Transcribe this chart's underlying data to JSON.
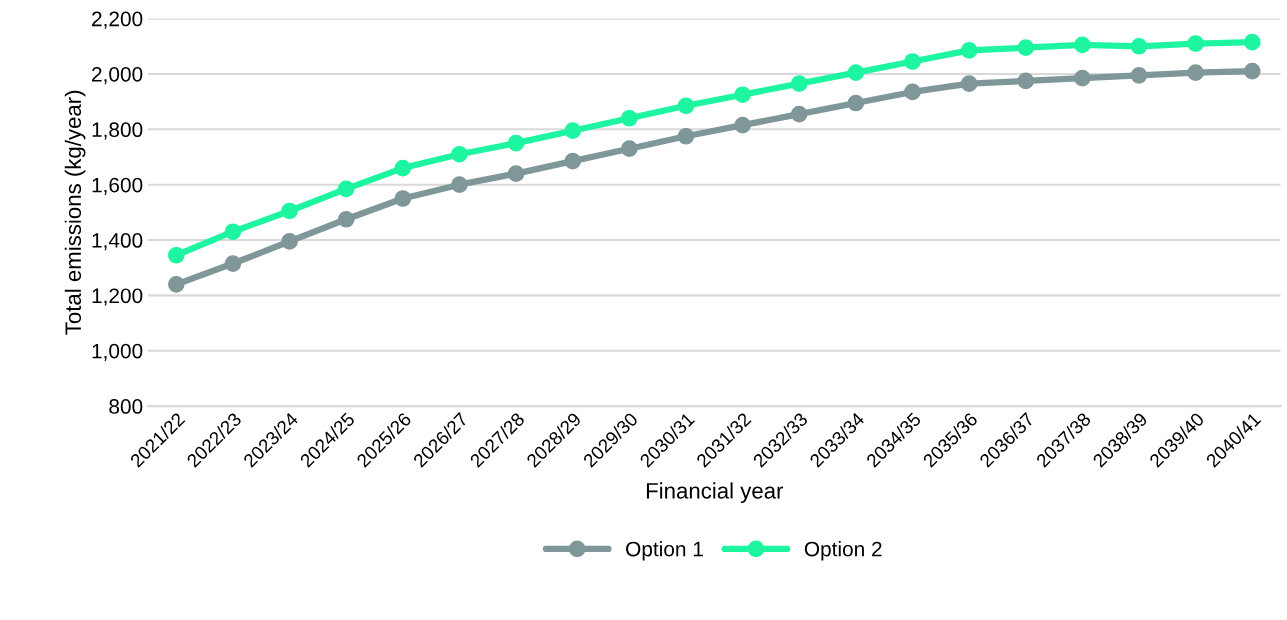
{
  "chart_data": {
    "type": "line",
    "xlabel": "Financial year",
    "ylabel": "Total emissions (kg/year)",
    "categories": [
      "2021/22",
      "2022/23",
      "2023/24",
      "2024/25",
      "2025/26",
      "2026/27",
      "2027/28",
      "2028/29",
      "2029/30",
      "2030/31",
      "2031/32",
      "2032/33",
      "2033/34",
      "2034/35",
      "2035/36",
      "2036/37",
      "2037/38",
      "2038/39",
      "2039/40",
      "2040/41"
    ],
    "series": [
      {
        "name": "Option 1",
        "color": "#7f9799",
        "values": [
          1240,
          1315,
          1395,
          1475,
          1550,
          1600,
          1640,
          1685,
          1730,
          1775,
          1815,
          1855,
          1895,
          1935,
          1965,
          1975,
          1985,
          1995,
          2005,
          2010
        ]
      },
      {
        "name": "Option 2",
        "color": "#1ef5a0",
        "values": [
          1345,
          1430,
          1505,
          1585,
          1660,
          1710,
          1750,
          1795,
          1840,
          1885,
          1925,
          1965,
          2005,
          2045,
          2085,
          2095,
          2105,
          2100,
          2110,
          2115
        ]
      }
    ],
    "ylim": [
      800,
      2200
    ],
    "yticks": [
      {
        "value": 800,
        "label": "800"
      },
      {
        "value": 1000,
        "label": "1,000"
      },
      {
        "value": 1200,
        "label": "1,200"
      },
      {
        "value": 1400,
        "label": "1,400"
      },
      {
        "value": 1600,
        "label": "1,600"
      },
      {
        "value": 1800,
        "label": "1,800"
      },
      {
        "value": 2000,
        "label": "2,000"
      },
      {
        "value": 2200,
        "label": "2,200"
      }
    ],
    "grid": "y",
    "legend": "bottom",
    "marker": "circle",
    "line_style": "solid"
  }
}
